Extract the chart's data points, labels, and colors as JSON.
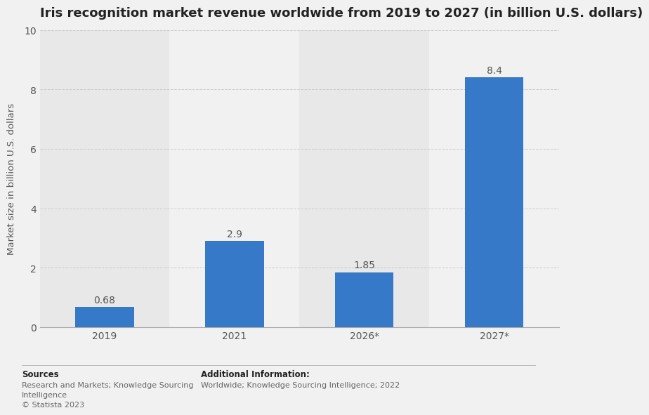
{
  "title": "Iris recognition market revenue worldwide from 2019 to 2027 (in billion U.S. dollars)",
  "categories": [
    "2019",
    "2021",
    "2026*",
    "2027*"
  ],
  "values": [
    0.68,
    2.9,
    1.85,
    8.4
  ],
  "bar_color": "#3579c8",
  "ylabel": "Market size in billion U.S. dollars",
  "ylim": [
    0,
    10
  ],
  "yticks": [
    0,
    2,
    4,
    6,
    8,
    10
  ],
  "background_color": "#f1f1f1",
  "plot_bg_color": "#f1f1f1",
  "column_bg_even": "#e8e8e8",
  "column_bg_odd": "#f1f1f1",
  "title_fontsize": 13,
  "label_fontsize": 9.5,
  "tick_fontsize": 10,
  "value_fontsize": 10,
  "footer_sources_title": "Sources",
  "footer_sources_line1": "Research and Markets; Knowledge Sourcing",
  "footer_sources_line2": "Intelligence",
  "footer_sources_line3": "© Statista 2023",
  "footer_info_title": "Additional Information:",
  "footer_info": "Worldwide; Knowledge Sourcing Intelligence; 2022"
}
